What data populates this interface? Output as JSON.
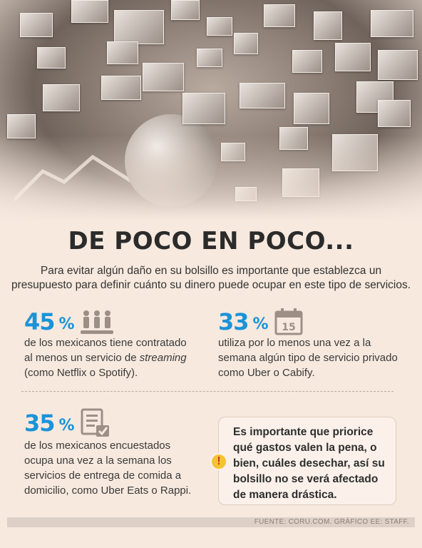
{
  "title": "DE POCO EN POCO...",
  "intro": "Para evitar algún daño en su bolsillo es importante que establezca un presupuesto para definir cuánto su dinero puede ocupar en este tipo de servicios.",
  "accent_color": "#1a93d9",
  "stats": [
    {
      "value": "45",
      "symbol": "%",
      "icon": "people-icon",
      "text_before": "de los mexicanos tiene contratado al menos un servicio de ",
      "text_italic": "streaming",
      "text_after": " (como Netflix o Spotify)."
    },
    {
      "value": "33",
      "symbol": "%",
      "icon": "calendar-icon",
      "calendar_day": "15",
      "text": "utiliza por lo menos una vez a la semana algún tipo de servicio privado como Uber o Cabify."
    },
    {
      "value": "35",
      "symbol": "%",
      "icon": "checklist-icon",
      "text": "de los mexicanos encuestados ocupa una vez a la semana los servicios de entrega de comida a domicilio, como Uber Eats o Rappi."
    }
  ],
  "note": {
    "icon": "warning-icon",
    "mark": "!",
    "text": "Es importante que priorice qué gastos valen la pena, o bien, cuáles desechar, así su bolsillo no se verá afectado de manera drástica."
  },
  "footer": "FUENTE: CORU.COM. GRÁFICO EE: STAFF."
}
